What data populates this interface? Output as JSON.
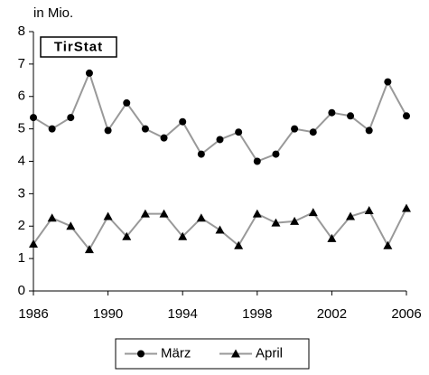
{
  "chart_data": {
    "type": "line",
    "y_label": "in Mio.",
    "annotation": "TirStat",
    "x": [
      1986,
      1987,
      1988,
      1989,
      1990,
      1991,
      1992,
      1993,
      1994,
      1995,
      1996,
      1997,
      1998,
      1999,
      2000,
      2001,
      2002,
      2003,
      2004,
      2005,
      2006
    ],
    "series": [
      {
        "name": "März",
        "color": "#999999",
        "marker_color": "#000000",
        "marker": "circle",
        "values": [
          5.35,
          5.0,
          5.35,
          6.72,
          4.95,
          5.8,
          5.0,
          4.72,
          5.22,
          4.22,
          4.67,
          4.9,
          4.0,
          4.22,
          5.0,
          4.9,
          5.5,
          5.4,
          4.95,
          6.45,
          5.4
        ]
      },
      {
        "name": "April",
        "color": "#999999",
        "marker_color": "#000000",
        "marker": "triangle",
        "values": [
          1.45,
          2.25,
          2.0,
          1.28,
          2.3,
          1.68,
          2.38,
          2.38,
          1.68,
          2.25,
          1.88,
          1.4,
          2.38,
          2.1,
          2.15,
          2.42,
          1.62,
          2.3,
          2.48,
          1.4,
          2.55
        ]
      }
    ],
    "xlim": [
      1986,
      2006
    ],
    "xticks": [
      1986,
      1990,
      1994,
      1998,
      2002,
      2006
    ],
    "ylim": [
      0,
      8
    ],
    "yticks": [
      0,
      1,
      2,
      3,
      4,
      5,
      6,
      7,
      8
    ],
    "grid": false,
    "legend": "bottom"
  }
}
